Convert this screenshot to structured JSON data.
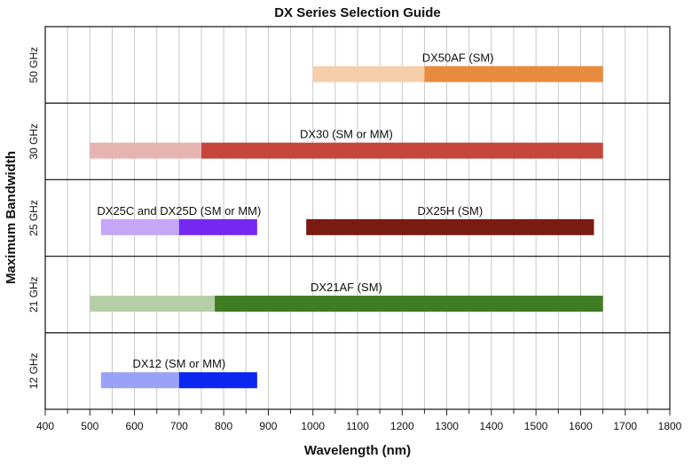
{
  "chart_data": {
    "type": "bar",
    "orientation": "horizontal-range",
    "title": "DX Series Selection Guide",
    "xlabel": "Wavelength (nm)",
    "ylabel": "Maximum Bandwidth",
    "xlim": [
      400,
      1800
    ],
    "x_ticks": [
      400,
      500,
      600,
      700,
      800,
      900,
      1000,
      1100,
      1200,
      1300,
      1400,
      1500,
      1600,
      1700,
      1800
    ],
    "minor_tick_step": 50,
    "grid": true,
    "rows": [
      {
        "label": "50 GHz",
        "bars": [
          {
            "name": "DX50AF (SM)",
            "light_range": [
              1000,
              1250
            ],
            "range": [
              1250,
              1650
            ],
            "light_color": "#f6ceaa",
            "color": "#e88b3e"
          }
        ]
      },
      {
        "label": "30 GHz",
        "bars": [
          {
            "name": "DX30 (SM or MM)",
            "light_range": [
              500,
              750
            ],
            "range": [
              750,
              1650
            ],
            "light_color": "#e6b4b0",
            "color": "#c4463c"
          }
        ]
      },
      {
        "label": "25 GHz",
        "bars": [
          {
            "name": "DX25C and DX25D (SM or MM)",
            "light_range": [
              525,
              700
            ],
            "range": [
              700,
              875
            ],
            "light_color": "#c6a6f8",
            "color": "#7428f0"
          },
          {
            "name": "DX25H (SM)",
            "light_range": null,
            "range": [
              985,
              1630
            ],
            "light_color": null,
            "color": "#7a1a12"
          }
        ]
      },
      {
        "label": "21 GHz",
        "bars": [
          {
            "name": "DX21AF (SM)",
            "light_range": [
              500,
              780
            ],
            "range": [
              780,
              1650
            ],
            "light_color": "#b4cfa5",
            "color": "#3f7c22"
          }
        ]
      },
      {
        "label": "12 GHz",
        "bars": [
          {
            "name": "DX12 (SM or MM)",
            "light_range": [
              525,
              700
            ],
            "range": [
              700,
              875
            ],
            "light_color": "#9aa2f8",
            "color": "#0a26f0"
          }
        ]
      }
    ]
  }
}
